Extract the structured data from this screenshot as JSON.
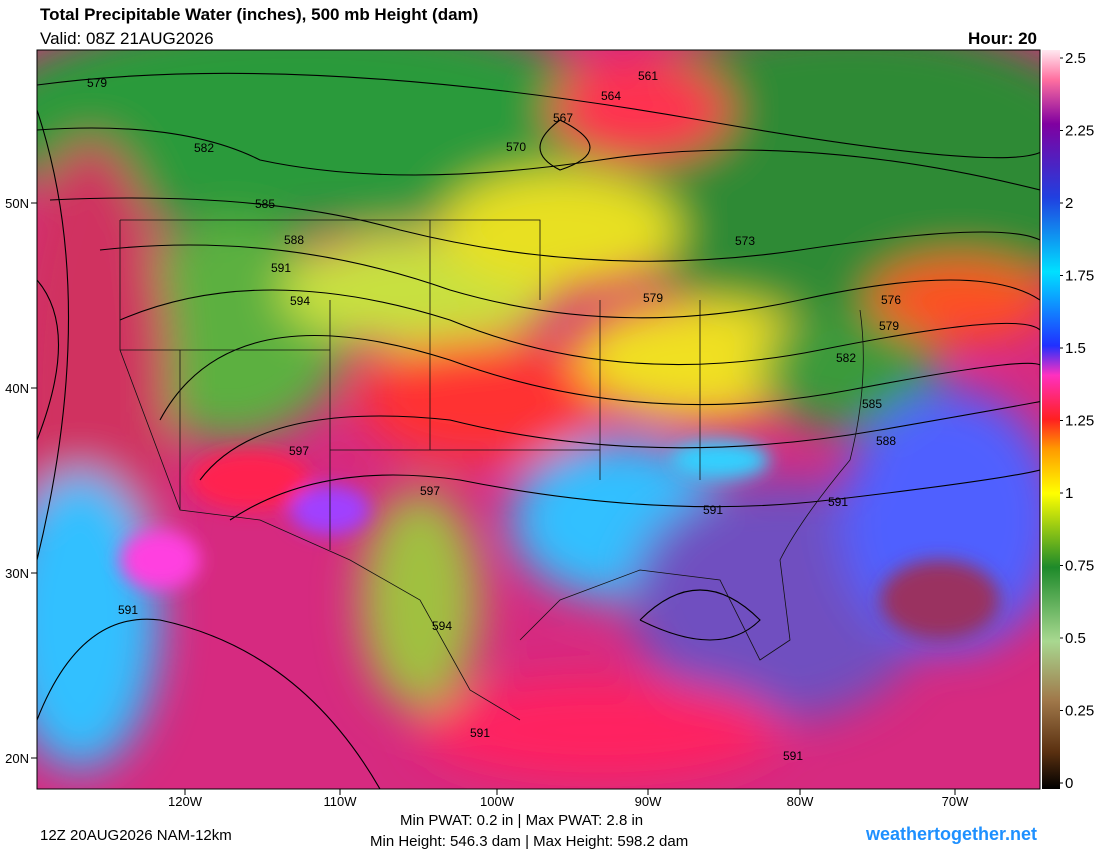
{
  "header": {
    "title": "Total Precipitable Water (inches), 500 mb Height (dam)",
    "valid": "Valid: 08Z 21AUG2026",
    "hour": "Hour: 20"
  },
  "map": {
    "lat_labels": [
      "50N",
      "40N",
      "30N",
      "20N"
    ],
    "lon_labels": [
      "120W",
      "110W",
      "100W",
      "90W",
      "80W",
      "70W"
    ],
    "contour_labels": [
      "579",
      "582",
      "585",
      "588",
      "591",
      "594",
      "597",
      "597",
      "594",
      "591",
      "591",
      "561",
      "564",
      "567",
      "570",
      "573",
      "579",
      "576",
      "579",
      "582",
      "585",
      "588",
      "591",
      "591",
      "591"
    ]
  },
  "colorbar": {
    "range": [
      0,
      2.5
    ],
    "ticks": [
      0,
      0.25,
      0.5,
      0.75,
      1,
      1.25,
      1.5,
      1.75,
      2,
      2.25,
      2.5
    ]
  },
  "footer": {
    "run": "12Z 20AUG2026 NAM-12km",
    "pwat": "Min PWAT:   0.2 in | Max PWAT:   2.8 in",
    "height": "Min Height: 546.3 dam | Max Height: 598.2 dam",
    "site": "weathertogether.net"
  }
}
